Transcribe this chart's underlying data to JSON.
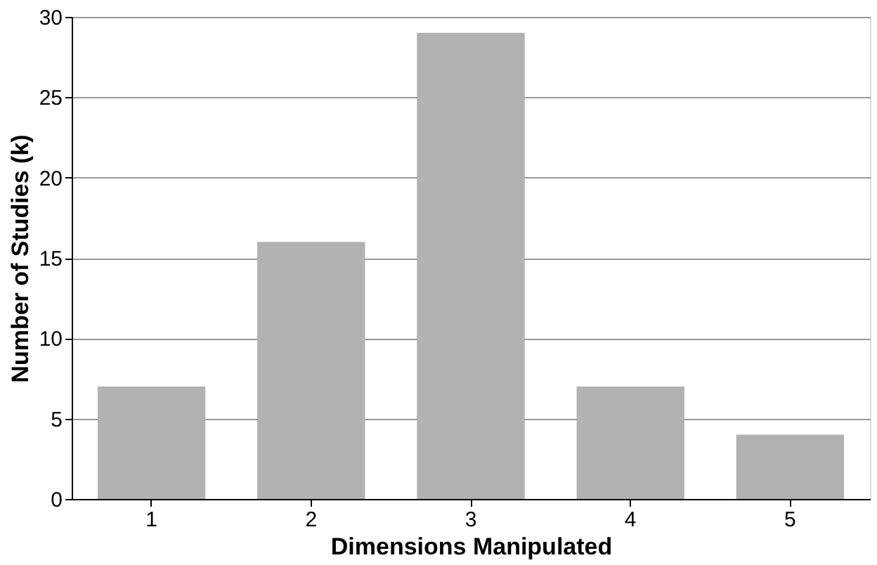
{
  "chart_data": {
    "type": "bar",
    "xlabel": "Dimensions Manipulated",
    "ylabel": "Number of Studies (k)",
    "categories": [
      "1",
      "2",
      "3",
      "4",
      "5"
    ],
    "values": [
      7,
      16,
      29,
      7,
      4
    ],
    "color": "#b2b2b2",
    "ylim": [
      0,
      30
    ],
    "yticks": [
      0,
      5,
      10,
      15,
      20,
      25,
      30
    ],
    "grid": "y"
  }
}
